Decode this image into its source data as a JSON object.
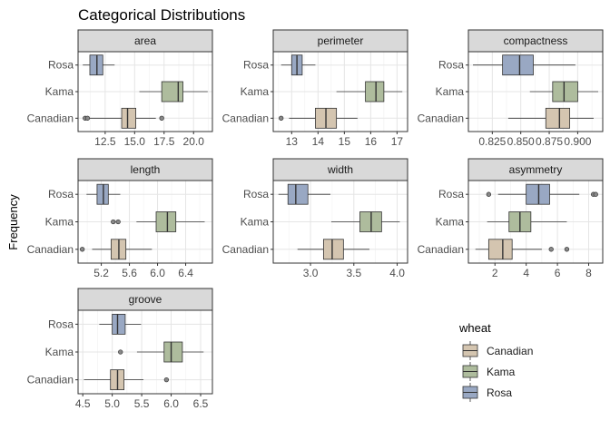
{
  "chart_data": {
    "type": "boxplot",
    "title": "Categorical Distributions",
    "ylabel": "Frequency",
    "categories": [
      "Rosa",
      "Kama",
      "Canadian"
    ],
    "legend": {
      "title": "wheat",
      "placement": "right",
      "items": [
        {
          "name": "Canadian",
          "color": "#D4C5B0"
        },
        {
          "name": "Kama",
          "color": "#AEBC9D"
        },
        {
          "name": "Rosa",
          "color": "#99A8C3"
        }
      ]
    },
    "grid": true,
    "panels": [
      {
        "name": "area",
        "xlim": [
          10.2,
          21.6
        ],
        "ticks": [
          12.5,
          15.0,
          17.5,
          20.0
        ],
        "tick_labels": [
          "12.5",
          "15.0",
          "17.5",
          "20.0"
        ],
        "boxes": {
          "Rosa": {
            "whislo": 10.6,
            "q1": 11.2,
            "med": 11.8,
            "q3": 12.3,
            "whishi": 13.3,
            "fliers": []
          },
          "Kama": {
            "whislo": 15.4,
            "q1": 17.3,
            "med": 18.7,
            "q3": 19.1,
            "whishi": 21.2,
            "fliers": []
          },
          "Canadian": {
            "whislo": 11.2,
            "q1": 13.9,
            "med": 14.4,
            "q3": 15.1,
            "whishi": 16.8,
            "fliers": [
              10.8,
              11.0,
              17.3
            ]
          }
        }
      },
      {
        "name": "perimeter",
        "xlim": [
          12.3,
          17.4
        ],
        "ticks": [
          13,
          14,
          15,
          16,
          17
        ],
        "tick_labels": [
          "13",
          "14",
          "15",
          "16",
          "17"
        ],
        "boxes": {
          "Rosa": {
            "whislo": 12.6,
            "q1": 13.0,
            "med": 13.2,
            "q3": 13.4,
            "whishi": 13.9,
            "fliers": []
          },
          "Kama": {
            "whislo": 14.7,
            "q1": 15.8,
            "med": 16.2,
            "q3": 16.5,
            "whishi": 17.2,
            "fliers": []
          },
          "Canadian": {
            "whislo": 12.9,
            "q1": 13.9,
            "med": 14.3,
            "q3": 14.7,
            "whishi": 15.5,
            "fliers": [
              12.6
            ]
          }
        }
      },
      {
        "name": "compactness",
        "xlim": [
          0.804,
          0.922
        ],
        "ticks": [
          0.825,
          0.85,
          0.875,
          0.9
        ],
        "tick_labels": [
          "0.825",
          "0.850",
          "0.875",
          "0.900"
        ],
        "boxes": {
          "Rosa": {
            "whislo": 0.808,
            "q1": 0.834,
            "med": 0.849,
            "q3": 0.861,
            "whishi": 0.898,
            "fliers": []
          },
          "Kama": {
            "whislo": 0.858,
            "q1": 0.878,
            "med": 0.888,
            "q3": 0.9,
            "whishi": 0.918,
            "fliers": []
          },
          "Canadian": {
            "whislo": 0.839,
            "q1": 0.872,
            "med": 0.884,
            "q3": 0.893,
            "whishi": 0.914,
            "fliers": []
          }
        }
      },
      {
        "name": "length",
        "xlim": [
          4.87,
          6.78
        ],
        "ticks": [
          5.2,
          5.6,
          6.0,
          6.4
        ],
        "tick_labels": [
          "5.2",
          "5.6",
          "6.0",
          "6.4"
        ],
        "boxes": {
          "Rosa": {
            "whislo": 4.99,
            "q1": 5.14,
            "med": 5.23,
            "q3": 5.3,
            "whishi": 5.47,
            "fliers": []
          },
          "Kama": {
            "whislo": 5.7,
            "q1": 5.98,
            "med": 6.14,
            "q3": 6.26,
            "whishi": 6.67,
            "fliers": [
              5.37,
              5.44
            ]
          },
          "Canadian": {
            "whislo": 5.07,
            "q1": 5.34,
            "med": 5.45,
            "q3": 5.55,
            "whishi": 5.92,
            "fliers": [
              4.93
            ]
          }
        }
      },
      {
        "name": "width",
        "xlim": [
          2.57,
          4.12
        ],
        "ticks": [
          3.0,
          3.5,
          4.0
        ],
        "tick_labels": [
          "3.0",
          "3.5",
          "4.0"
        ],
        "boxes": {
          "Rosa": {
            "whislo": 2.63,
            "q1": 2.74,
            "med": 2.83,
            "q3": 2.97,
            "whishi": 3.23,
            "fliers": []
          },
          "Kama": {
            "whislo": 3.24,
            "q1": 3.57,
            "med": 3.7,
            "q3": 3.82,
            "whishi": 4.03,
            "fliers": []
          },
          "Canadian": {
            "whislo": 2.85,
            "q1": 3.15,
            "med": 3.25,
            "q3": 3.38,
            "whishi": 3.68,
            "fliers": []
          }
        }
      },
      {
        "name": "asymmetry",
        "xlim": [
          0.3,
          8.9
        ],
        "ticks": [
          2,
          4,
          6,
          8
        ],
        "tick_labels": [
          "2",
          "4",
          "6",
          "8"
        ],
        "boxes": {
          "Rosa": {
            "whislo": 2.2,
            "q1": 4.0,
            "med": 4.8,
            "q3": 5.5,
            "whishi": 7.4,
            "fliers": [
              1.6,
              8.3,
              8.45
            ]
          },
          "Kama": {
            "whislo": 1.5,
            "q1": 2.9,
            "med": 3.6,
            "q3": 4.3,
            "whishi": 6.6,
            "fliers": []
          },
          "Canadian": {
            "whislo": 0.75,
            "q1": 1.6,
            "med": 2.5,
            "q3": 3.1,
            "whishi": 5.0,
            "fliers": [
              5.6,
              6.6
            ]
          }
        }
      },
      {
        "name": "groove",
        "xlim": [
          4.42,
          6.7
        ],
        "ticks": [
          4.5,
          5.0,
          5.5,
          6.0,
          6.5
        ],
        "tick_labels": [
          "4.5",
          "5.0",
          "5.5",
          "6.0",
          "6.5"
        ],
        "boxes": {
          "Rosa": {
            "whislo": 4.78,
            "q1": 5.0,
            "med": 5.09,
            "q3": 5.22,
            "whishi": 5.49,
            "fliers": []
          },
          "Kama": {
            "whislo": 5.42,
            "q1": 5.88,
            "med": 6.0,
            "q3": 6.19,
            "whishi": 6.55,
            "fliers": [
              5.14
            ]
          },
          "Canadian": {
            "whislo": 4.52,
            "q1": 4.97,
            "med": 5.09,
            "q3": 5.2,
            "whishi": 5.53,
            "fliers": [
              5.92
            ]
          }
        }
      }
    ]
  }
}
